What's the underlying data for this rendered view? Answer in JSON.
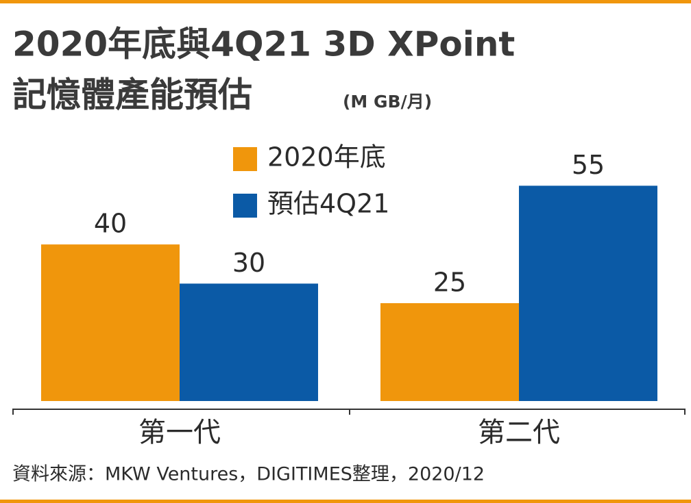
{
  "chart_data": {
    "type": "bar",
    "title": [
      "2020年底與4Q21 3D XPoint",
      "記憶體產能預估"
    ],
    "unit": "(M GB/月)",
    "categories": [
      "第一代",
      "第二代"
    ],
    "series": [
      {
        "name": "2020年底",
        "color": "#f0960c",
        "values": [
          40,
          25
        ]
      },
      {
        "name": "預估4Q21",
        "color": "#0b5aa6",
        "values": [
          30,
          55
        ]
      }
    ],
    "source": "資料來源：MKW Ventures，DIGITIMES整理，2020/12"
  }
}
